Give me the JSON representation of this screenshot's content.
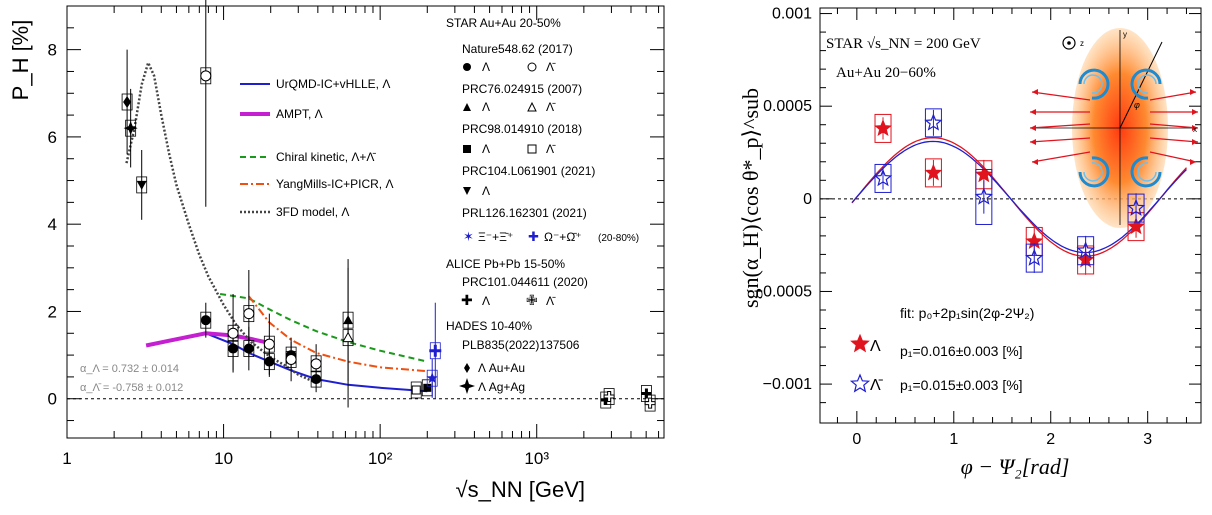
{
  "chart_data": [
    {
      "type": "scatter",
      "xlabel": "√s_NN [GeV]",
      "ylabel": "P_H [%]",
      "xscale": "log",
      "xlim": [
        1,
        6500
      ],
      "ylim": [
        -0.9,
        9.0
      ],
      "xticks": [
        "1",
        "10",
        "10²",
        "10³"
      ],
      "yticks": [
        "0",
        "2",
        "4",
        "6",
        "8"
      ],
      "legend_header": "STAR Au+Au 20-50%",
      "legend_placement": "right",
      "legend_blocks": [
        {
          "ref": "Nature548.62 (2017)",
          "entries": [
            "Λ",
            "Λ̄"
          ]
        },
        {
          "ref": "PRC76.024915 (2007)",
          "entries": [
            "Λ",
            "Λ̄"
          ]
        },
        {
          "ref": "PRC98.014910 (2018)",
          "entries": [
            "Λ",
            "Λ̄"
          ]
        },
        {
          "ref": "PRC104.L061901 (2021)",
          "entries": [
            "Λ"
          ]
        },
        {
          "ref": "PRL126.162301 (2021)",
          "entries": [
            "Ξ⁻+Ξ̄⁺",
            "Ω⁻+Ω̄⁺",
            "(20-80%)"
          ]
        },
        {
          "ref": "ALICE Pb+Pb 15-50%",
          "entries": []
        },
        {
          "ref": "PRC101.044611 (2020)",
          "entries": [
            "Λ",
            "Λ̄"
          ]
        },
        {
          "ref": "HADES 10-40%",
          "entries": []
        },
        {
          "ref": "PLB835(2022)137506",
          "entries": [
            "Λ  Au+Au",
            "Λ  Ag+Ag"
          ]
        }
      ],
      "model_legend": [
        "UrQMD-IC+vHLLE, Λ",
        "AMPT, Λ",
        "Chiral kinetic, Λ+Λ̄",
        "YangMills-IC+PICR, Λ",
        "3FD model, Λ"
      ],
      "alpha_notes": [
        "α_Λ =  0.732 ± 0.014",
        "α_Λ̄ = -0.758 ± 0.012"
      ],
      "series": [
        {
          "name": "UrQMD-IC+vHLLE, Λ",
          "color": "#1f1fd0",
          "style": "solid",
          "x": [
            7.7,
            11.5,
            14.5,
            19.6,
            27,
            39,
            62.4,
            100,
            200
          ],
          "y": [
            1.5,
            1.25,
            1.05,
            0.85,
            0.65,
            0.45,
            0.32,
            0.25,
            0.17
          ]
        },
        {
          "name": "AMPT, Λ",
          "color": "#c41fd0",
          "style": "thick",
          "x": [
            3.2,
            4.5,
            7.7,
            11.5,
            14.5,
            19.6
          ],
          "y": [
            1.22,
            1.33,
            1.5,
            1.45,
            1.38,
            1.28
          ]
        },
        {
          "name": "Chiral kinetic, Λ+Λ̄",
          "color": "#1a9a1a",
          "style": "dashed",
          "x": [
            9.5,
            14.5,
            19.6,
            27,
            39,
            62.4,
            100,
            200
          ],
          "y": [
            2.4,
            2.3,
            2.05,
            1.8,
            1.55,
            1.3,
            1.1,
            0.85
          ]
        },
        {
          "name": "YangMills-IC+PICR, Λ",
          "color": "#f05010",
          "style": "dashdot",
          "x": [
            14.5,
            19.6,
            27,
            39,
            62.4,
            100,
            200
          ],
          "y": [
            2.35,
            1.75,
            1.35,
            1.05,
            0.85,
            0.72,
            0.63
          ]
        },
        {
          "name": "3FD model, Λ",
          "color": "#444444",
          "style": "dotted",
          "x": [
            2.4,
            2.7,
            3.0,
            3.3,
            3.6,
            4.0,
            4.5,
            5.0,
            6.0,
            7.0,
            8.0,
            10,
            12,
            15,
            20,
            25,
            30,
            40
          ],
          "y": [
            5.4,
            6.2,
            7.2,
            7.7,
            7.4,
            6.5,
            5.6,
            4.9,
            4.0,
            3.3,
            2.8,
            2.15,
            1.7,
            1.3,
            0.95,
            0.75,
            0.55,
            0.35
          ]
        }
      ],
      "points": [
        {
          "name": "HADES Au+Au Λ",
          "marker": "diamond",
          "x": 2.42,
          "y": 6.8,
          "err": 1.2
        },
        {
          "name": "HADES Ag+Ag Λ",
          "marker": "star4",
          "x": 2.55,
          "y": 6.2,
          "err": 0.9
        },
        {
          "name": "PRC104 Λ",
          "marker": "tri-down",
          "x": 3.0,
          "y": 4.9,
          "err": 0.8
        },
        {
          "name": "PRC76 Λ̄",
          "marker": "circle-open",
          "x": 7.7,
          "y": 7.4,
          "err": 3.0
        },
        {
          "name": "Nature Λ",
          "marker": "circle",
          "x": 7.7,
          "y": 1.8,
          "err": 0.4
        },
        {
          "name": "Nature Λ",
          "marker": "circle",
          "x": 11.5,
          "y": 1.15,
          "err": 0.5
        },
        {
          "name": "Nature Λ",
          "marker": "circle",
          "x": 14.5,
          "y": 1.15,
          "err": 0.5
        },
        {
          "name": "Nature Λ",
          "marker": "circle",
          "x": 19.6,
          "y": 0.85,
          "err": 0.35
        },
        {
          "name": "Nature Λ",
          "marker": "circle",
          "x": 27,
          "y": 1.0,
          "err": 0.3
        },
        {
          "name": "Nature Λ",
          "marker": "circle",
          "x": 39,
          "y": 0.45,
          "err": 0.3
        },
        {
          "name": "Nature Λ̄",
          "marker": "circle-open",
          "x": 11.5,
          "y": 1.5,
          "err": 0.9
        },
        {
          "name": "Nature Λ̄",
          "marker": "circle-open",
          "x": 14.5,
          "y": 1.95,
          "err": 1.0
        },
        {
          "name": "Nature Λ̄",
          "marker": "circle-open",
          "x": 19.6,
          "y": 1.25,
          "err": 0.7
        },
        {
          "name": "Nature Λ̄",
          "marker": "circle-open",
          "x": 27,
          "y": 0.9,
          "err": 0.5
        },
        {
          "name": "Nature Λ̄",
          "marker": "circle-open",
          "x": 39,
          "y": 0.8,
          "err": 0.45
        },
        {
          "name": "PRC76 Λ",
          "marker": "tri-up",
          "x": 62.4,
          "y": 1.8,
          "err": 1.4
        },
        {
          "name": "PRC76 Λ̄",
          "marker": "tri-up-open",
          "x": 62.4,
          "y": 1.4,
          "err": 1.6
        },
        {
          "name": "PRC98 Λ",
          "marker": "square",
          "x": 200,
          "y": 0.25,
          "err": 0.06
        },
        {
          "name": "PRC98 Λ̄",
          "marker": "square-open",
          "x": 170,
          "y": 0.2,
          "err": 0.06
        },
        {
          "name": "PRL126 Ξ",
          "marker": "star-blue",
          "x": 215,
          "y": 0.47,
          "err": 0.45
        },
        {
          "name": "PRL126 Ω",
          "marker": "cross-blue",
          "x": 225,
          "y": 1.1,
          "err": 1.1
        },
        {
          "name": "ALICE Λ",
          "marker": "cross",
          "x": 2760,
          "y": -0.03,
          "err": 0.1
        },
        {
          "name": "ALICE Λ",
          "marker": "cross",
          "x": 5020,
          "y": 0.12,
          "err": 0.1
        },
        {
          "name": "ALICE Λ̄",
          "marker": "cross-open",
          "x": 2900,
          "y": 0.05,
          "err": 0.1
        },
        {
          "name": "ALICE Λ̄",
          "marker": "cross-open",
          "x": 5300,
          "y": -0.1,
          "err": 0.1
        }
      ]
    },
    {
      "type": "scatter",
      "xlabel": "φ − Ψ₂[rad]",
      "ylabel": "sgn(α_H)⟨cos θ*_p⟩^sub",
      "xlim": [
        -0.38,
        3.55
      ],
      "ylim": [
        -0.00121,
        0.00103
      ],
      "xticks": [
        "0",
        "1",
        "2",
        "3"
      ],
      "yticks": [
        "−0.001",
        "−0.0005",
        "0",
        "0.0005",
        "0.001"
      ],
      "header_lines": [
        "STAR √s_NN = 200 GeV",
        "Au+Au 20−60%"
      ],
      "fit_label": "fit: p₀+2p₁sin(2φ-2Ψ₂)",
      "legend_placement": "bottom-left",
      "series": [
        {
          "name": "Λ",
          "color": "#e0141e",
          "marker": "star-filled",
          "p0": 1e-05,
          "p1": 0.00016,
          "x": [
            0.27,
            0.79,
            1.31,
            1.83,
            2.36,
            2.88
          ],
          "y": [
            0.00038,
            0.00014,
            0.00013,
            -0.00023,
            -0.00033,
            -0.00015
          ],
          "err": [
            6e-05,
            7e-05,
            8e-05,
            8e-05,
            8e-05,
            6e-05
          ]
        },
        {
          "name": "Λ̄",
          "color": "#1f1fd0",
          "marker": "star-open",
          "p0": 1e-05,
          "p1": 0.00015,
          "x": [
            0.27,
            0.79,
            1.31,
            1.83,
            2.36,
            2.88
          ],
          "y": [
            0.00011,
            0.00041,
            1e-05,
            -0.00032,
            -0.00028,
            -5e-05
          ],
          "err": [
            6e-05,
            7e-05,
            9e-05,
            8e-05,
            8e-05,
            8e-05
          ]
        }
      ],
      "legend": [
        {
          "symbol": "Λ",
          "text": "p₁=0.016±0.003 [%]"
        },
        {
          "symbol": "Λ̄",
          "text": "p₁=0.015±0.003 [%]"
        }
      ],
      "inset_axis_labels": [
        "z",
        "y",
        "x",
        "φ"
      ]
    }
  ]
}
